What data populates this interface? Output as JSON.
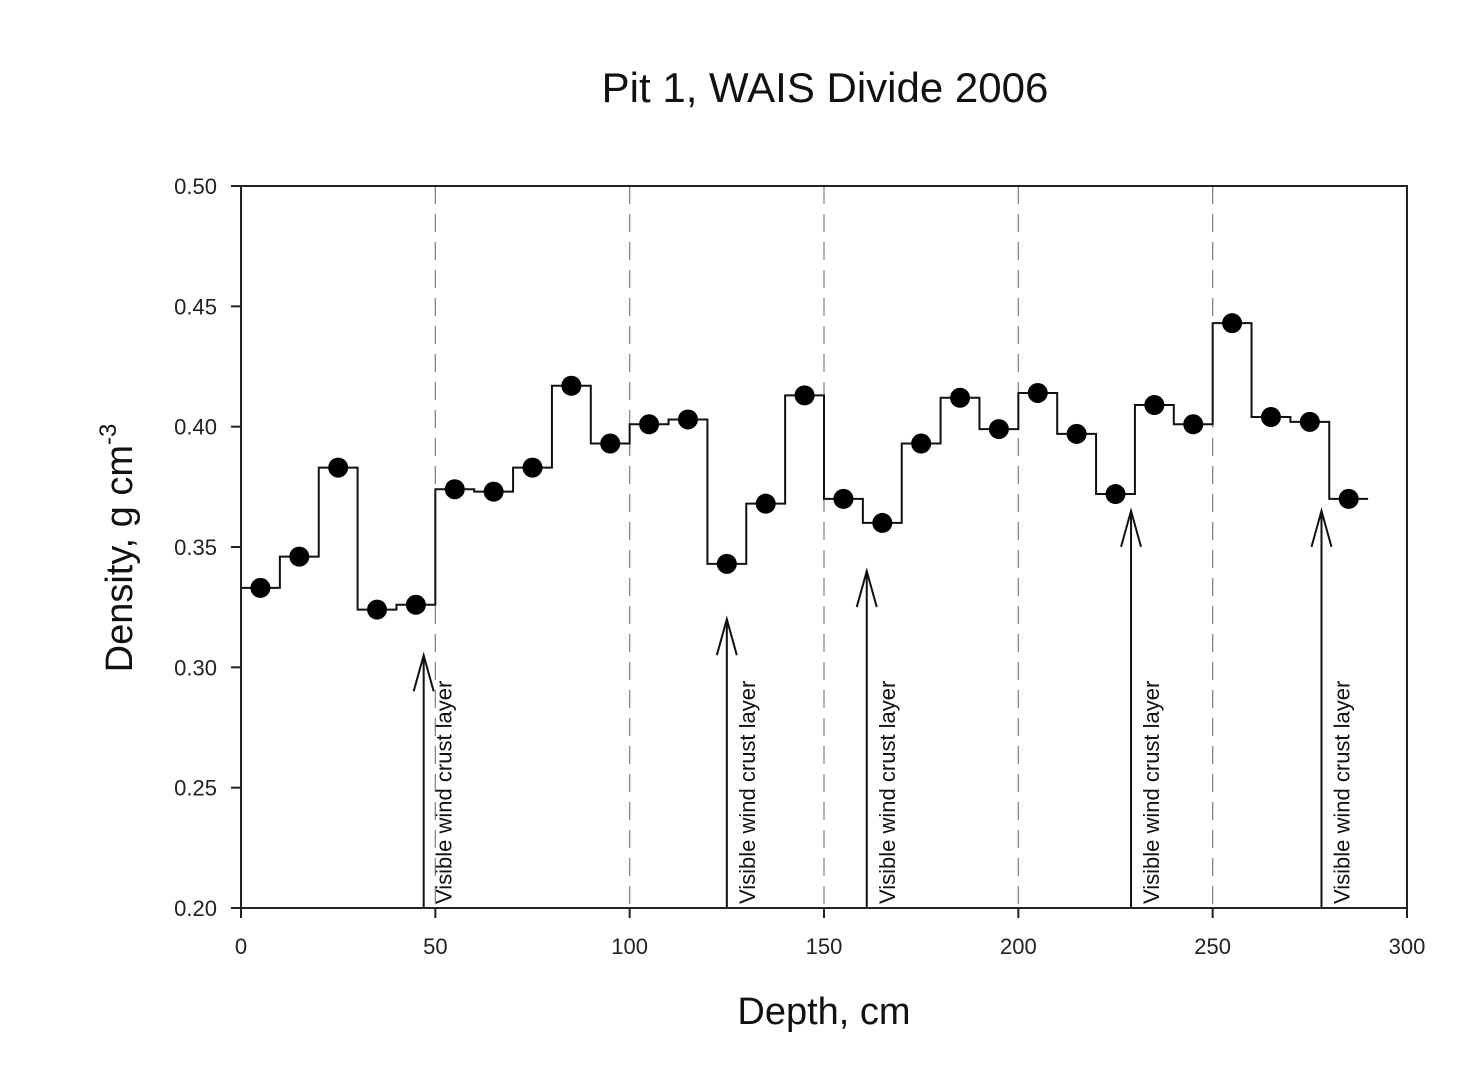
{
  "chart_data": {
    "type": "line",
    "title": "Pit 1, WAIS Divide 2006",
    "xlabel": "Depth, cm",
    "ylabel_main": "Density, g cm",
    "ylabel_sup": "-3",
    "xlim": [
      0,
      300
    ],
    "ylim": [
      0.2,
      0.5
    ],
    "xticks": [
      0,
      50,
      100,
      150,
      200,
      250,
      300
    ],
    "yticks": [
      0.2,
      0.25,
      0.3,
      0.35,
      0.4,
      0.45,
      0.5
    ],
    "xtick_labels": [
      "0",
      "50",
      "100",
      "150",
      "200",
      "250",
      "300"
    ],
    "ytick_labels": [
      "0.20",
      "0.25",
      "0.30",
      "0.35",
      "0.40",
      "0.45",
      "0.50"
    ],
    "grid": "dashed vertical lines at 50, 100, 150, 200, 250",
    "series": [
      {
        "style": "step",
        "x": [
          5,
          15,
          25,
          35,
          45,
          55,
          65,
          75,
          85,
          95,
          105,
          115,
          125,
          135,
          145,
          155,
          165,
          175,
          185,
          195,
          205,
          215,
          225,
          235,
          245,
          255,
          265,
          275,
          285
        ],
        "y": [
          0.333,
          0.346,
          0.383,
          0.324,
          0.326,
          0.374,
          0.373,
          0.383,
          0.417,
          0.393,
          0.401,
          0.403,
          0.343,
          0.368,
          0.413,
          0.37,
          0.36,
          0.393,
          0.412,
          0.399,
          0.414,
          0.397,
          0.372,
          0.409,
          0.401,
          0.443,
          0.404,
          0.402,
          0.37
        ]
      }
    ],
    "annotations": [
      {
        "text": "Visible wind crust layer",
        "x": 47,
        "y_tip": 0.305
      },
      {
        "text": "Visible wind crust layer",
        "x": 125,
        "y_tip": 0.32
      },
      {
        "text": "Visible wind crust layer",
        "x": 161,
        "y_tip": 0.34
      },
      {
        "text": "Visible wind crust layer",
        "x": 229,
        "y_tip": 0.365
      },
      {
        "text": "Visible wind crust layer",
        "x": 278,
        "y_tip": 0.365
      }
    ]
  }
}
